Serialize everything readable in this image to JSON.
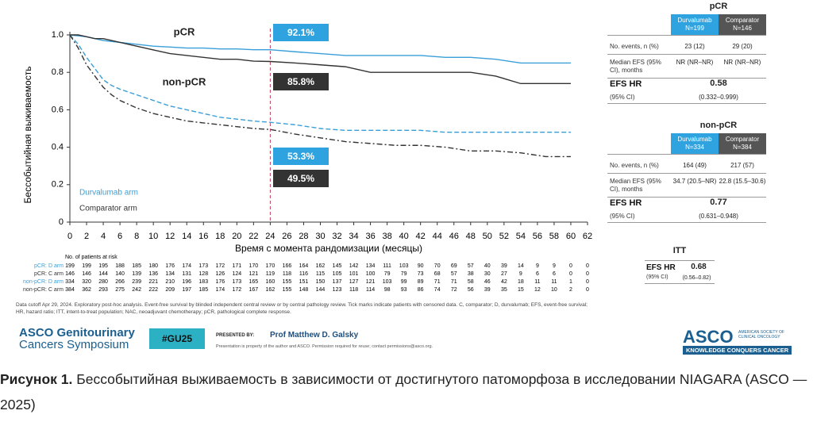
{
  "chart_data": {
    "type": "line",
    "ylabel": "Бессобытийная выживаемость",
    "xlabel": "Время с момента рандомизации (месяцы)",
    "x": [
      0,
      1,
      2,
      3,
      4,
      5,
      6,
      8,
      10,
      12,
      14,
      16,
      18,
      20,
      22,
      24,
      27,
      30,
      33,
      36,
      39,
      42,
      45,
      48,
      51,
      54,
      57,
      60
    ],
    "series": [
      {
        "name": "pCR: D arm",
        "color": "#3a9fd8",
        "line_style": "solid",
        "values": [
          1,
          0.995,
          0.99,
          0.98,
          0.97,
          0.965,
          0.96,
          0.95,
          0.94,
          0.935,
          0.93,
          0.93,
          0.925,
          0.925,
          0.921,
          0.921,
          0.91,
          0.9,
          0.89,
          0.89,
          0.89,
          0.89,
          0.88,
          0.88,
          0.87,
          0.85,
          0.85,
          0.85
        ]
      },
      {
        "name": "pCR: C arm",
        "color": "#333333",
        "line_style": "solid",
        "values": [
          1,
          1,
          0.99,
          0.98,
          0.98,
          0.97,
          0.96,
          0.94,
          0.92,
          0.9,
          0.89,
          0.88,
          0.87,
          0.87,
          0.86,
          0.858,
          0.85,
          0.84,
          0.83,
          0.8,
          0.8,
          0.8,
          0.8,
          0.8,
          0.78,
          0.74,
          0.74,
          0.74
        ]
      },
      {
        "name": "non-pCR: D arm",
        "color": "#3a9fd8",
        "line_style": "dashed",
        "values": [
          1,
          0.95,
          0.88,
          0.82,
          0.76,
          0.73,
          0.71,
          0.68,
          0.65,
          0.62,
          0.6,
          0.58,
          0.56,
          0.55,
          0.54,
          0.533,
          0.52,
          0.5,
          0.49,
          0.49,
          0.49,
          0.49,
          0.48,
          0.48,
          0.48,
          0.48,
          0.48,
          0.48
        ]
      },
      {
        "name": "non-pCR: C arm",
        "color": "#333333",
        "line_style": "dashdot",
        "values": [
          1,
          0.93,
          0.84,
          0.78,
          0.72,
          0.68,
          0.65,
          0.61,
          0.58,
          0.56,
          0.54,
          0.53,
          0.52,
          0.51,
          0.5,
          0.495,
          0.47,
          0.45,
          0.43,
          0.42,
          0.41,
          0.41,
          0.4,
          0.38,
          0.38,
          0.37,
          0.35,
          0.35
        ]
      }
    ],
    "legend": [
      {
        "name": "Durvalumab arm",
        "color": "#3a9fd8"
      },
      {
        "name": "Comparator arm",
        "color": "#333333"
      }
    ],
    "annotations": [
      "pCR",
      "non-pCR",
      "92.1%",
      "85.8%",
      "53.3%",
      "49.5%"
    ],
    "xlim": [
      0,
      62
    ],
    "xticks": [
      0,
      2,
      4,
      6,
      8,
      10,
      12,
      14,
      16,
      18,
      20,
      22,
      24,
      26,
      28,
      30,
      32,
      34,
      36,
      38,
      40,
      42,
      44,
      46,
      48,
      50,
      52,
      54,
      56,
      58,
      60,
      62
    ],
    "ylim": [
      0,
      1
    ],
    "yticks": [
      0,
      0.2,
      0.4,
      0.6,
      0.8,
      {
        "value": 1,
        "label": "1.0"
      }
    ]
  },
  "risk_table": {
    "title": "No. of patients at risk",
    "rows": [
      [
        199,
        199,
        195,
        188,
        185,
        180,
        176,
        174,
        173,
        172,
        171,
        170,
        170,
        166,
        164,
        162,
        145,
        142,
        134,
        111,
        103,
        90,
        70,
        69,
        57,
        40,
        39,
        14,
        9,
        9,
        0,
        0
      ],
      [
        146,
        146,
        144,
        140,
        139,
        136,
        134,
        131,
        128,
        126,
        124,
        121,
        119,
        118,
        116,
        115,
        105,
        101,
        100,
        79,
        79,
        73,
        68,
        57,
        38,
        30,
        27,
        9,
        6,
        6,
        0,
        0
      ],
      [
        334,
        320,
        280,
        266,
        239,
        221,
        210,
        196,
        183,
        176,
        173,
        165,
        160,
        155,
        151,
        150,
        137,
        127,
        121,
        103,
        99,
        89,
        71,
        71,
        58,
        46,
        42,
        18,
        11,
        11,
        1,
        0
      ],
      [
        384,
        362,
        293,
        275,
        242,
        222,
        209,
        197,
        185,
        174,
        172,
        167,
        162,
        155,
        148,
        144,
        123,
        118,
        114,
        98,
        93,
        86,
        74,
        72,
        56,
        39,
        35,
        15,
        12,
        10,
        2,
        0
      ]
    ]
  },
  "footnote": "Data cutoff Apr 29, 2024. Exploratory post-hoc analysis. Event-free survival by blinded independent central review or by central pathology review. Tick marks indicate patients with censored data. C, comparator; D, durvalumab; EFS, event-free survival; HR, hazard ratio; ITT, intent-to-treat population; NAC, neoadjuvant chemotherapy; pCR, pathological complete response.",
  "tables": [
    {
      "title": "pCR",
      "headers": [
        "Durvalumab N=199",
        "Comparator N=146"
      ],
      "rows": [
        [
          "No. events, n (%)",
          "23 (12)",
          "29 (20)"
        ],
        [
          "Median EFS (95% CI), months",
          "NR (NR–NR)",
          "NR (NR–NR)"
        ]
      ],
      "hr_label": "EFS HR",
      "hr": "0.58",
      "ci_label": "(95% CI)",
      "ci": "(0.332–0.999)"
    },
    {
      "title": "non-pCR",
      "headers": [
        "Durvalumab N=334",
        "Comparator N=384"
      ],
      "rows": [
        [
          "No. events, n (%)",
          "164 (49)",
          "217 (57)"
        ],
        [
          "Median EFS (95% CI), months",
          "34.7 (20.5–NR)",
          "22.8 (15.5–30.6)"
        ]
      ],
      "hr_label": "EFS HR",
      "hr": "0.77",
      "ci_label": "(95% CI)",
      "ci": "(0.631–0.948)"
    },
    {
      "title": "ITT",
      "hr_label": "EFS HR",
      "hr": "0.68",
      "ci_label": "(95% CI)",
      "ci": "(0.56–0.82)"
    }
  ],
  "footer": {
    "logo": "ASCO Genitourinary",
    "logo2": "Cancers Symposium",
    "hashtag": "#GU25",
    "presented_by": "PRESENTED BY:",
    "presenter": "Prof Matthew D. Galsky",
    "rights": "Presentation is property of the author and ASCO. Permission required for reuse; contact permissions@asco.org.",
    "asco": "ASCO",
    "asco_sub": "AMERICAN SOCIETY OF CLINICAL ONCOLOGY",
    "tagline": "KNOWLEDGE CONQUERS CANCER"
  },
  "caption": {
    "label": "Рисунок 1.",
    "text": "Бессобытийная выживаемость в зависимости от достигнутого патоморфоза в исследовании NIAGARA (ASCO — 2025)"
  }
}
